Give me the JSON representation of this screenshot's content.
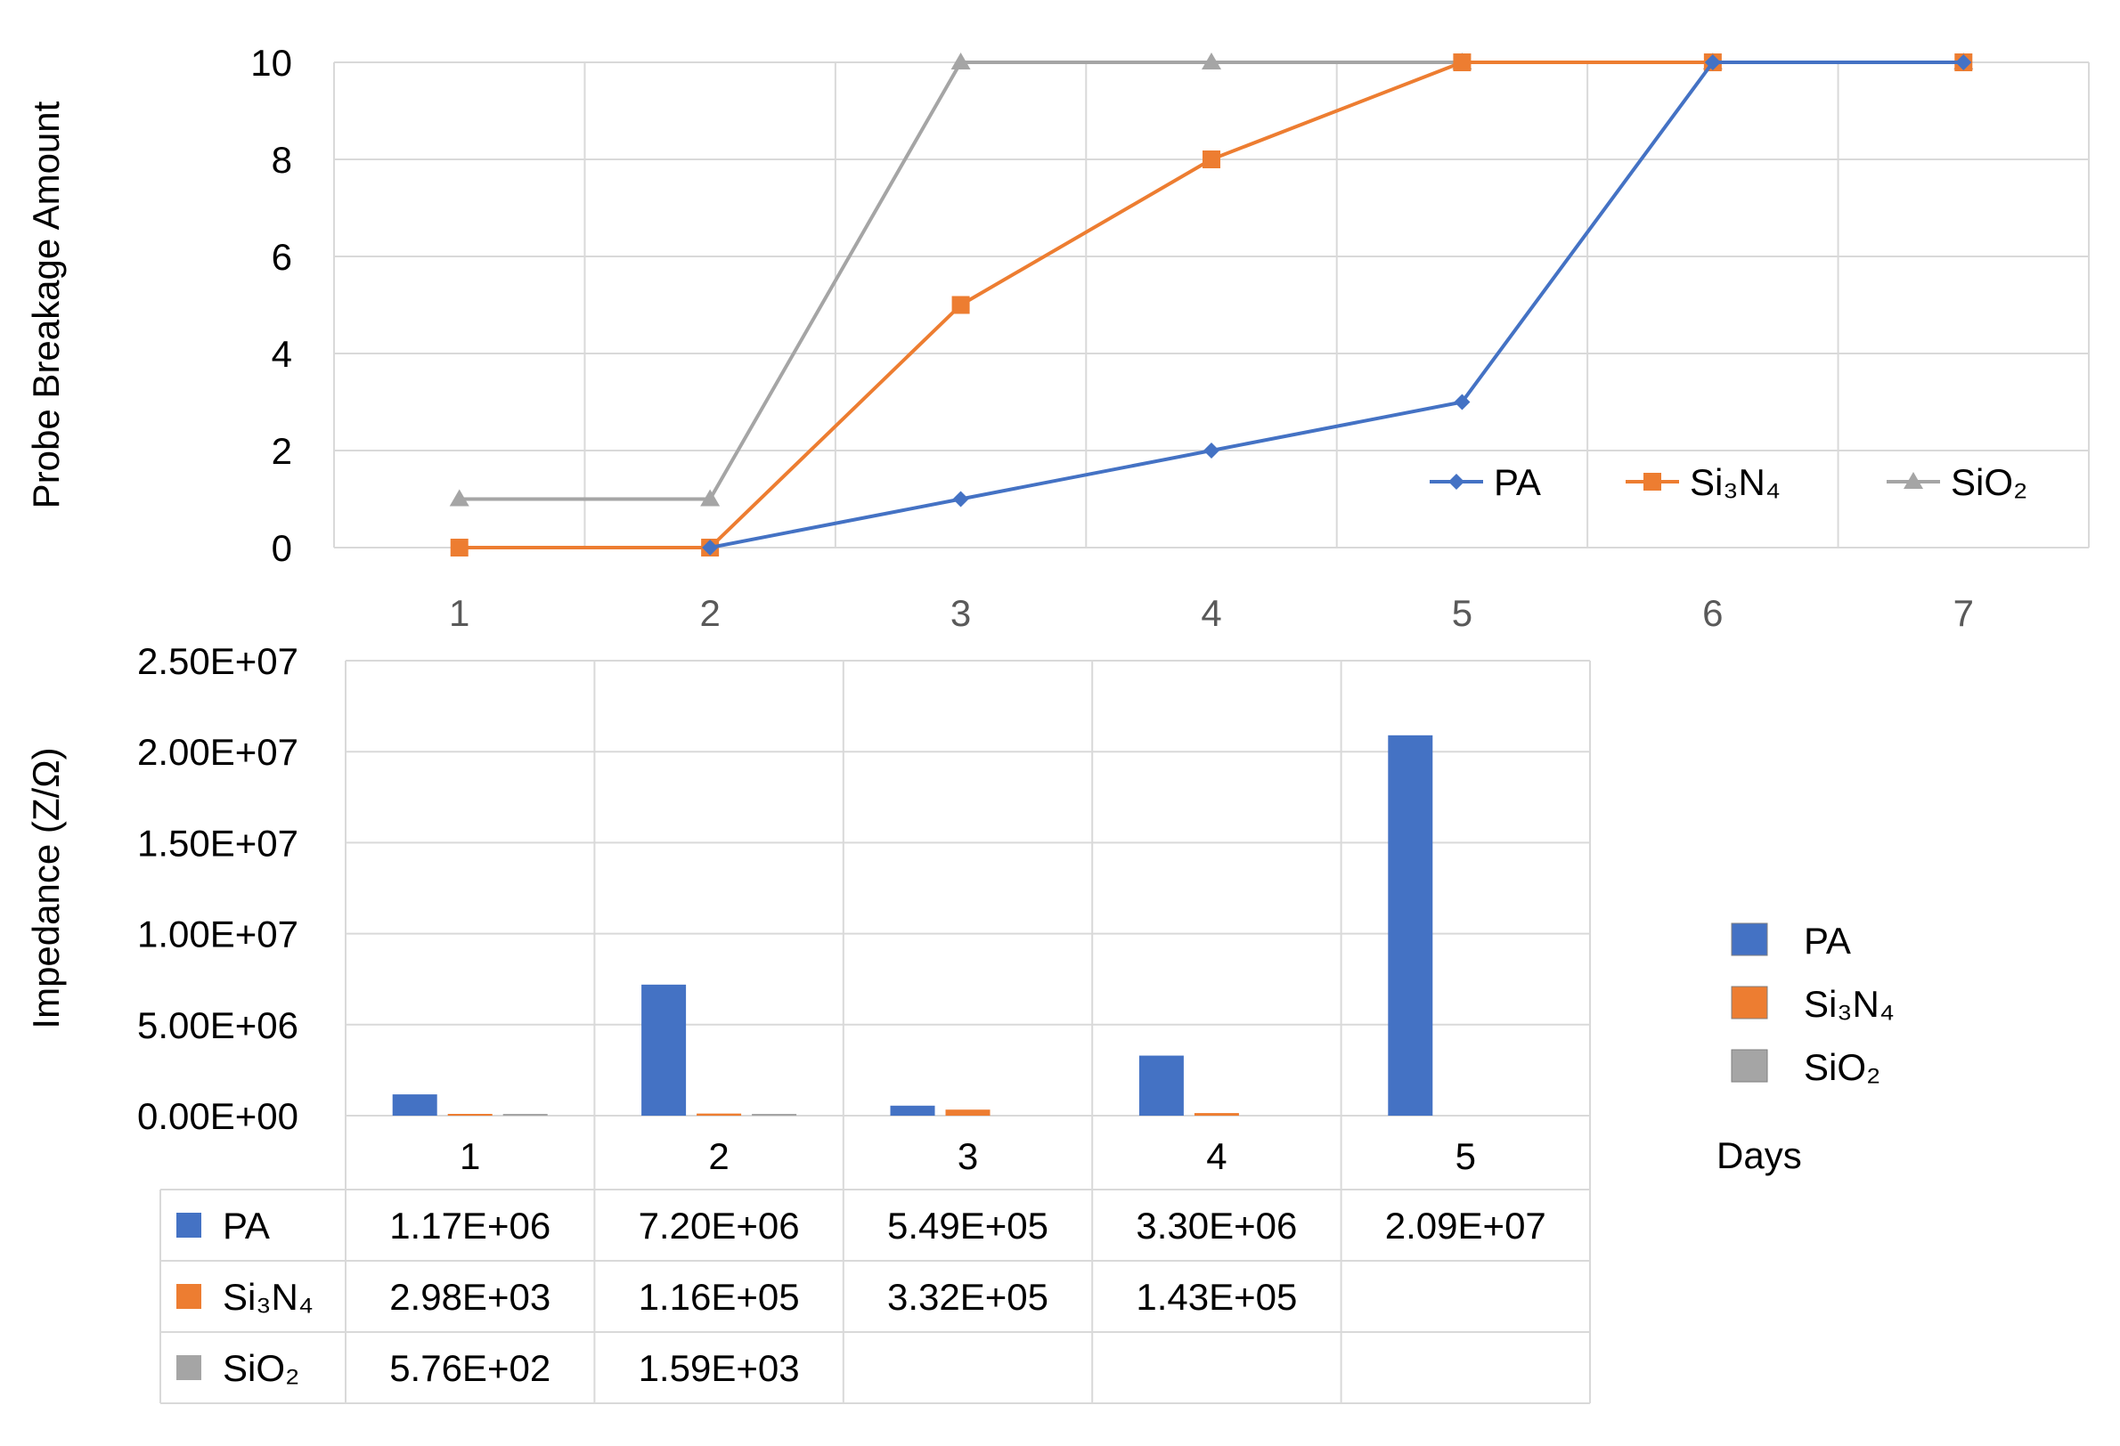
{
  "colors": {
    "PA": "#4472C4",
    "Si3N4": "#ED7D31",
    "SiO2": "#A5A5A5",
    "grid": "#d9d9d9",
    "text": "#595959"
  },
  "chart_data": [
    {
      "type": "line",
      "ylabel": "Probe Breakage Amount",
      "ylim": [
        0,
        10
      ],
      "yticks": [
        "0",
        "2",
        "4",
        "6",
        "8",
        "10"
      ],
      "categories": [
        "1",
        "2",
        "3",
        "4",
        "5",
        "6",
        "7"
      ],
      "legend_position": "bottom-right",
      "grid": true,
      "series": [
        {
          "key": "PA",
          "name": "PA",
          "marker": "diamond",
          "values": [
            null,
            0,
            1,
            2,
            3,
            10,
            10
          ]
        },
        {
          "key": "Si3N4",
          "name": "Si₃N₄",
          "marker": "square",
          "values": [
            0,
            0,
            5,
            8,
            10,
            10,
            10
          ]
        },
        {
          "key": "SiO2",
          "name": "SiO₂",
          "marker": "triangle",
          "values": [
            1,
            1,
            10,
            10,
            10,
            10,
            10
          ]
        }
      ]
    },
    {
      "type": "bar",
      "ylabel": "Impedance (Z/Ω)",
      "xlabel": "Days",
      "ylim": [
        0,
        25000000
      ],
      "yticks": [
        "0.00E+00",
        "5.00E+06",
        "1.00E+07",
        "1.50E+07",
        "2.00E+07",
        "2.50E+07"
      ],
      "categories": [
        "1",
        "2",
        "3",
        "4",
        "5"
      ],
      "legend_position": "right",
      "grid": true,
      "series": [
        {
          "key": "PA",
          "name": "PA",
          "values": [
            1170000,
            7200000,
            549000,
            3300000,
            20900000
          ],
          "labels": [
            "1.17E+06",
            "7.20E+06",
            "5.49E+05",
            "3.30E+06",
            "2.09E+07"
          ]
        },
        {
          "key": "Si3N4",
          "name": "Si₃N₄",
          "values": [
            2980,
            116000,
            332000,
            143000,
            null
          ],
          "labels": [
            "2.98E+03",
            "1.16E+05",
            "3.32E+05",
            "1.43E+05",
            ""
          ]
        },
        {
          "key": "SiO2",
          "name": "SiO₂",
          "values": [
            576,
            1590,
            null,
            null,
            null
          ],
          "labels": [
            "5.76E+02",
            "1.59E+03",
            "",
            "",
            ""
          ]
        }
      ]
    }
  ]
}
